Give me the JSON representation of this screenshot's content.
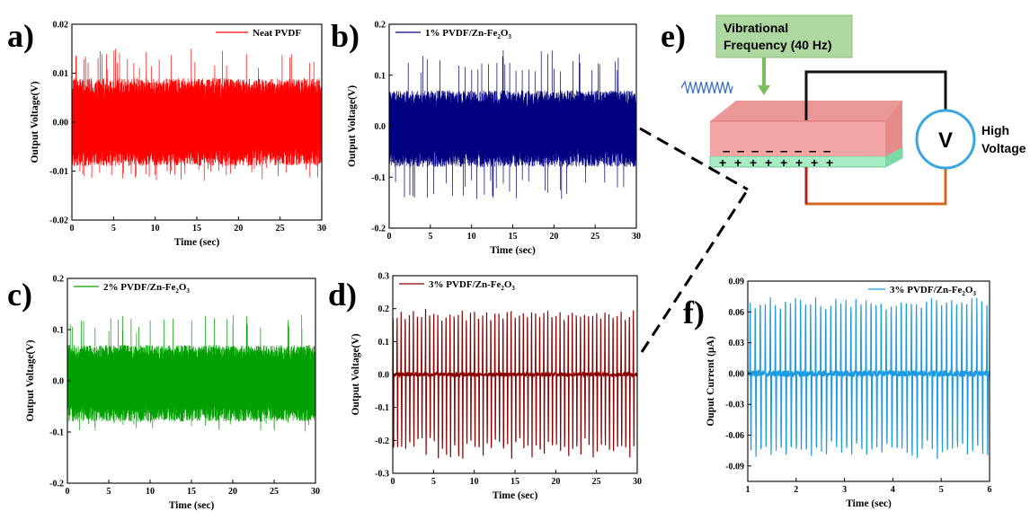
{
  "panel_labels": [
    "a)",
    "b)",
    "c)",
    "d)",
    "e)",
    "f)"
  ],
  "chart_data": [
    {
      "panel": "a)",
      "type": "line",
      "xlabel": "Time (sec)",
      "ylabel": "Output Voltage(V)",
      "xlim": [
        0,
        30
      ],
      "ylim": [
        -0.02,
        0.02
      ],
      "xticks": [
        "0",
        "5",
        "10",
        "15",
        "20",
        "25",
        "30"
      ],
      "yticks": [
        "-0.02",
        "-0.01",
        "0.00",
        "0.01",
        "0.02"
      ],
      "series": [
        {
          "name": "Neat PVDF",
          "color": "#ff0000",
          "baseline": 0.0,
          "envelope_max": 0.009,
          "envelope_min": -0.009,
          "peak_max": 0.015,
          "peak_min": -0.012,
          "peak_frequency_hz": 2.1
        }
      ]
    },
    {
      "panel": "b)",
      "type": "line",
      "xlabel": "Time (sec)",
      "ylabel": "Output Voltage(V)",
      "xlim": [
        0,
        30
      ],
      "ylim": [
        -0.2,
        0.2
      ],
      "xticks": [
        "0",
        "5",
        "10",
        "15",
        "20",
        "25",
        "30"
      ],
      "yticks": [
        "-0.2",
        "-0.1",
        "0.0",
        "0.1",
        "0.2"
      ],
      "series": [
        {
          "name": "1% PVDF/Zn-Fe2O3",
          "color": "#000080",
          "baseline": 0.0,
          "envelope_max": 0.07,
          "envelope_min": -0.08,
          "peak_max": 0.15,
          "peak_min": -0.15,
          "peak_frequency_hz": 1.3
        }
      ]
    },
    {
      "panel": "c)",
      "type": "line",
      "xlabel": "Time (sec)",
      "ylabel": "Output Voltage(V)",
      "xlim": [
        0,
        30
      ],
      "ylim": [
        -0.2,
        0.2
      ],
      "xticks": [
        "0",
        "5",
        "10",
        "15",
        "20",
        "25",
        "30"
      ],
      "yticks": [
        "-0.2",
        "-0.1",
        "0.0",
        "0.1",
        "0.2"
      ],
      "series": [
        {
          "name": "2% PVDF/Zn-Fe2O3",
          "color": "#00a000",
          "baseline": 0.0,
          "envelope_max": 0.07,
          "envelope_min": -0.08,
          "peak_max": 0.13,
          "peak_min": -0.1,
          "peak_frequency_hz": 0.6
        }
      ]
    },
    {
      "panel": "d)",
      "type": "line",
      "xlabel": "Time (sec)",
      "ylabel": "Output Voltage(V)",
      "xlim": [
        0,
        30
      ],
      "ylim": [
        -0.3,
        0.3
      ],
      "xticks": [
        "0",
        "5",
        "10",
        "15",
        "20",
        "25",
        "30"
      ],
      "yticks": [
        "-0.3",
        "-0.2",
        "-0.1",
        "0.0",
        "0.1",
        "0.2",
        "0.3"
      ],
      "series": [
        {
          "name": "3% PVDF/Zn-Fe2O3",
          "color": "#8b0000",
          "baseline": 0.0,
          "peak_max": 0.2,
          "peak_min": -0.26,
          "peak_frequency_hz": 2.0
        }
      ]
    },
    {
      "panel": "f)",
      "type": "line",
      "xlabel": "Time (sec)",
      "ylabel": "Ouput Current (µA)",
      "xlim": [
        1,
        6
      ],
      "ylim": [
        -0.105,
        0.09
      ],
      "xticks": [
        "1",
        "2",
        "3",
        "4",
        "5",
        "6"
      ],
      "yticks": [
        "-0.09",
        "-0.06",
        "-0.03",
        "0.00",
        "0.03",
        "0.06",
        "0.09"
      ],
      "series": [
        {
          "name": "3% PVDF/Zn-Fe2O3",
          "color": "#1e9be0",
          "baseline": 0.0,
          "peak_max": 0.075,
          "peak_min": -0.085,
          "peak_frequency_hz": 9.6
        }
      ]
    }
  ],
  "diagram": {
    "callout_line1": "Vibrational",
    "callout_line2": "Frequency (40 Hz)",
    "meter_symbol": "V",
    "meter_label_line1": "High",
    "meter_label_line2": "Voltage",
    "top_charge": "–",
    "bottom_charge": "+",
    "colors": {
      "top_layer": "#f1a5a5",
      "bottom_layer": "#a7ecc4",
      "callout_box": "#aed8a0",
      "arrow": "#7bbf5a",
      "spring": "#3e70c0",
      "meter_ring": "#3aa6e0",
      "charge": "#1020d0",
      "wire": "#111111",
      "wire_lower": "#d2691e"
    }
  }
}
